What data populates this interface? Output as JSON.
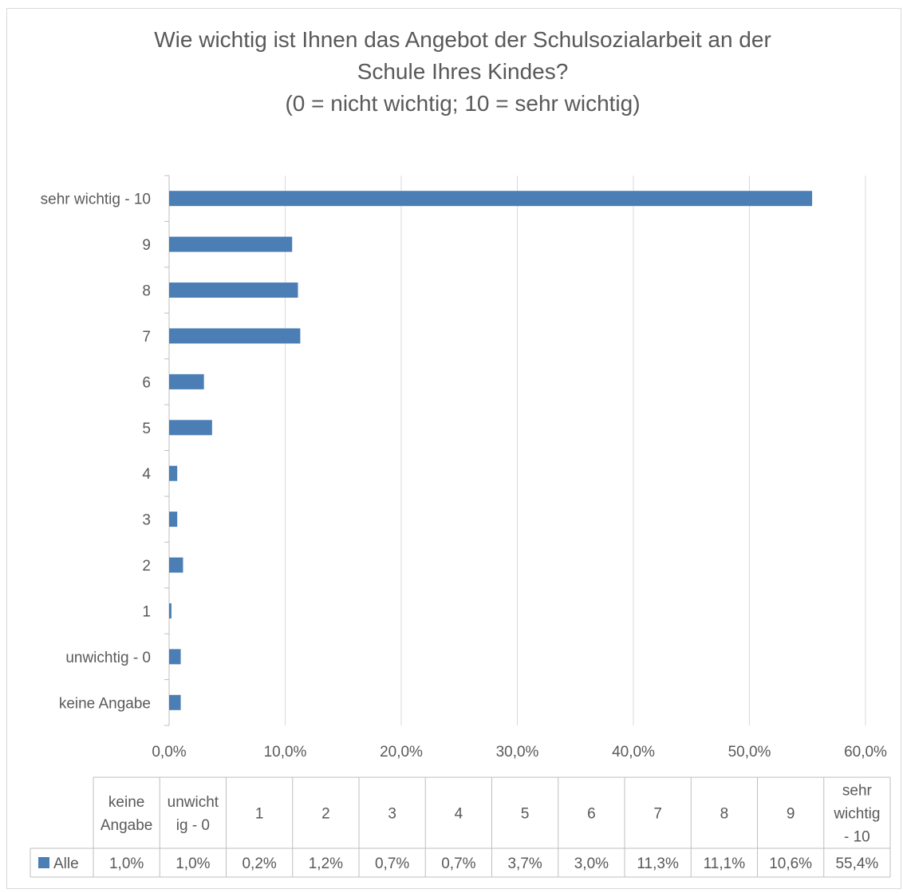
{
  "chart_data": {
    "type": "bar",
    "orientation": "horizontal",
    "title_lines": [
      "Wie wichtig ist Ihnen das Angebot der Schulsozialarbeit an der",
      "Schule Ihres Kindes?",
      "(0 = nicht wichtig; 10 = sehr wichtig)"
    ],
    "categories": [
      "keine Angabe",
      "unwichtig - 0",
      "1",
      "2",
      "3",
      "4",
      "5",
      "6",
      "7",
      "8",
      "9",
      "sehr wichtig - 10"
    ],
    "table_headers": [
      [
        "keine",
        "Angabe"
      ],
      [
        "unwicht",
        "ig - 0"
      ],
      [
        "1"
      ],
      [
        "2"
      ],
      [
        "3"
      ],
      [
        "4"
      ],
      [
        "5"
      ],
      [
        "6"
      ],
      [
        "7"
      ],
      [
        "8"
      ],
      [
        "9"
      ],
      [
        "sehr",
        "wichtig",
        "- 10"
      ]
    ],
    "series": [
      {
        "name": "Alle",
        "values": [
          1.0,
          1.0,
          0.2,
          1.2,
          0.7,
          0.7,
          3.7,
          3.0,
          11.3,
          11.1,
          10.6,
          55.4
        ],
        "labels": [
          "1,0%",
          "1,0%",
          "0,2%",
          "1,2%",
          "0,7%",
          "0,7%",
          "3,7%",
          "3,0%",
          "11,3%",
          "11,1%",
          "10,6%",
          "55,4%"
        ],
        "color": "#4a7eb5"
      }
    ],
    "x_ticks": [
      "0,0%",
      "10,0%",
      "20,0%",
      "30,0%",
      "40,0%",
      "50,0%",
      "60,0%"
    ],
    "xlim": [
      0,
      60
    ],
    "grid": true,
    "legend": "data-table"
  }
}
